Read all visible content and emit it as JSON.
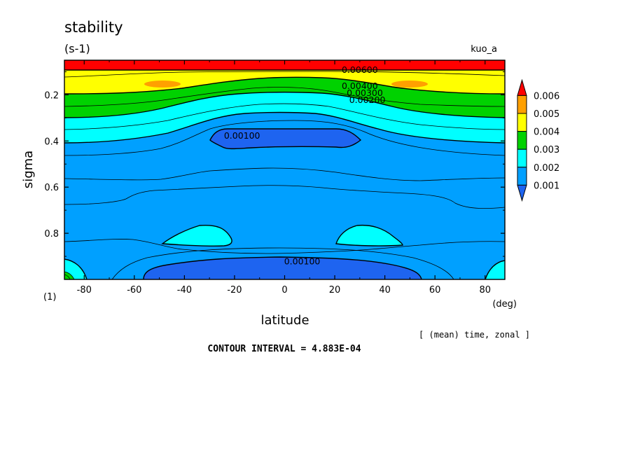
{
  "chart_data": {
    "type": "contour",
    "title": "stability",
    "units": "(s-1)",
    "run_label": "kuo_a",
    "xlabel": "latitude",
    "x_units": "(deg)",
    "ylabel": "sigma",
    "y_units": "(1)",
    "xlim": [
      -87.9,
      87.9
    ],
    "ylim": [
      1.0,
      0.05
    ],
    "y_axis_inverted": true,
    "x_ticks": [
      -80,
      -60,
      -40,
      -20,
      0,
      20,
      40,
      60,
      80
    ],
    "y_ticks": [
      0.2,
      0.4,
      0.6,
      0.8
    ],
    "averaging_note": "[ (mean) time, zonal ]",
    "contour_interval_text": "CONTOUR INTERVAL = 4.883E-04",
    "contour_labels": [
      {
        "text": "0.00600",
        "lat": 30,
        "sigma": 0.105
      },
      {
        "text": "0.00400",
        "lat": 30,
        "sigma": 0.175
      },
      {
        "text": "0.00300",
        "lat": 32,
        "sigma": 0.205
      },
      {
        "text": "0.00200",
        "lat": 33,
        "sigma": 0.235
      },
      {
        "text": "0.00100",
        "lat": -17,
        "sigma": 0.39
      },
      {
        "text": "0.00100",
        "lat": 7,
        "sigma": 0.935
      }
    ],
    "colorbar": {
      "levels": [
        "0.006",
        "0.005",
        "0.004",
        "0.003",
        "0.002",
        "0.001"
      ],
      "colors_low_to_high": [
        "#1e64f0",
        "#00a0ff",
        "#00ffff",
        "#00d200",
        "#ffff00",
        "#ffa000",
        "#ff0000"
      ],
      "extend": "both"
    },
    "fill_colors": {
      "min": "#1e64f0",
      "low": "#00a0ff",
      "mid": "#00ffff",
      "green": "#00d200",
      "yellow": "#ffff00",
      "orange": "#ffa000",
      "max": "#ff0000"
    }
  }
}
